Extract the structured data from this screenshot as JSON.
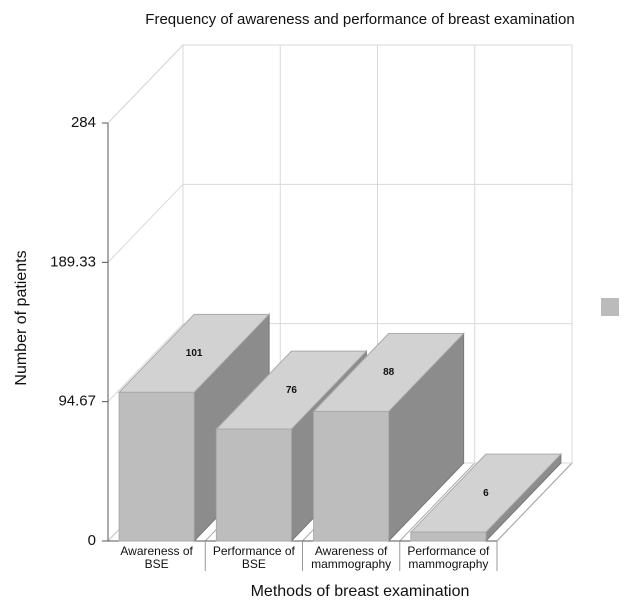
{
  "chart_data": {
    "type": "bar3d",
    "title": "Frequency of awareness and performance of breast examination",
    "x_label": "Methods of breast examination",
    "y_label": "Number of patients",
    "categories": [
      "Awareness of BSE",
      "Performance of BSE",
      "Awareness of mammography",
      "Performance of mammography"
    ],
    "values": [
      101,
      76,
      88,
      6
    ],
    "color": "#bdbdbd",
    "ylim": [
      0,
      284
    ],
    "yticks": [
      0,
      94.67,
      189.33,
      284
    ],
    "grid": true
  }
}
